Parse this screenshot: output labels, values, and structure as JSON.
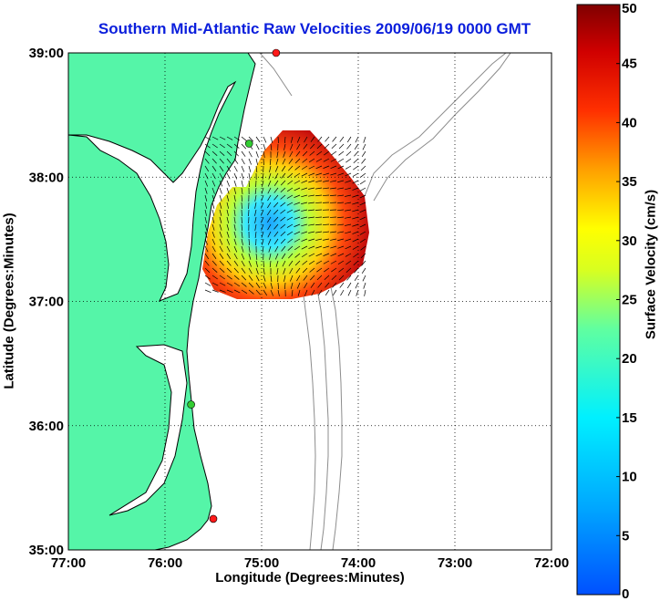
{
  "title": "Southern Mid-Atlantic Raw Velocities 2009/06/19 0000 GMT",
  "x_axis": {
    "label": "Longitude (Degrees:Minutes)",
    "ticks": [
      "77:00",
      "76:00",
      "75:00",
      "74:00",
      "73:00",
      "72:00"
    ]
  },
  "y_axis": {
    "label": "Latitude (Degrees:Minutes)",
    "ticks": [
      "39:00",
      "38:00",
      "37:00",
      "36:00",
      "35:00"
    ]
  },
  "colorbar": {
    "label": "Surface Velocity (cm/s)",
    "ticks": [
      "50",
      "45",
      "40",
      "35",
      "30",
      "25",
      "20",
      "15",
      "10",
      "5",
      "0"
    ],
    "min": 0,
    "max": 50
  },
  "colors": {
    "land": "#55f5a8",
    "coast": "#000000",
    "bathymetry": "#8c8c8c",
    "title": "#0a1edc",
    "station_red": "#ff1a1a",
    "station_green": "#33cc33"
  },
  "stations": [
    {
      "color": "red",
      "lon": -74.85,
      "lat": 39.0
    },
    {
      "color": "green",
      "lon": -75.13,
      "lat": 38.27
    },
    {
      "color": "green",
      "lon": -75.73,
      "lat": 36.17
    },
    {
      "color": "red",
      "lon": -75.5,
      "lat": 35.25
    }
  ]
}
